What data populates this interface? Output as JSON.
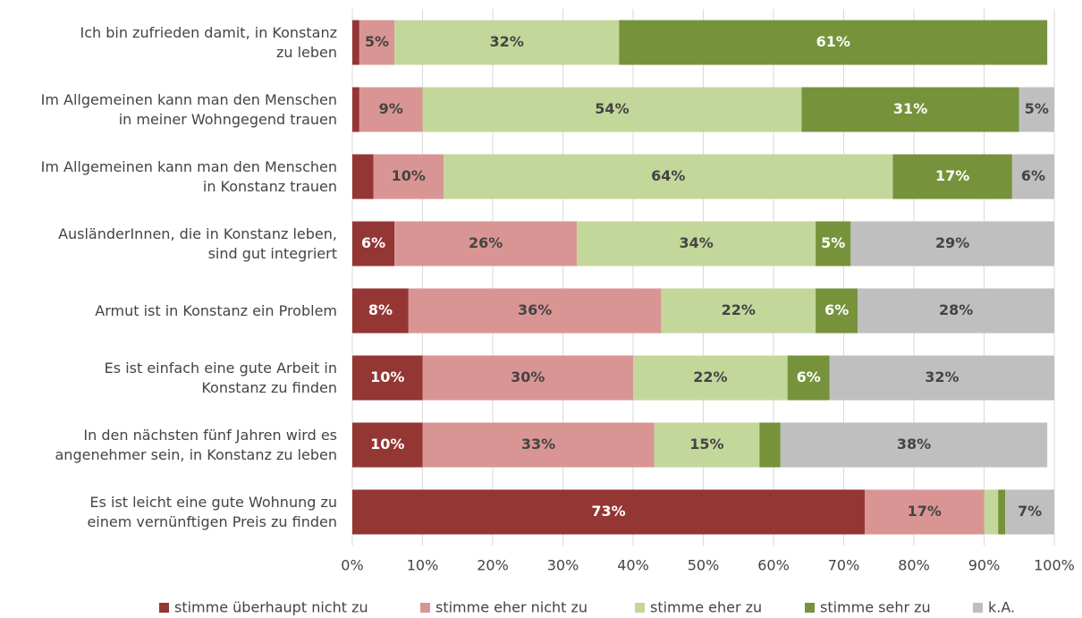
{
  "chart_data": {
    "type": "stacked-barh",
    "categories": [
      "Ich bin zufrieden damit, in Konstanz\nzu leben",
      "Im Allgemeinen kann man den Menschen\nin meiner Wohngegend trauen",
      "Im Allgemeinen kann man den Menschen\nin Konstanz trauen",
      "AusländerInnen, die in Konstanz leben,\nsind gut integriert",
      "Armut ist in Konstanz ein Problem",
      "Es ist einfach eine gute Arbeit in\nKonstanz zu finden",
      "In den nächsten fünf Jahren wird es\nangenehmer sein, in Konstanz zu leben",
      "Es ist leicht eine gute Wohnung zu\neinem vernünftigen Preis zu finden"
    ],
    "series": [
      {
        "name": "stimme überhaupt nicht zu",
        "color": "#943634",
        "values": [
          1,
          1,
          3,
          6,
          8,
          10,
          10,
          73
        ],
        "value_labels": [
          null,
          null,
          null,
          "6%",
          "8%",
          "10%",
          "10%",
          "73%"
        ]
      },
      {
        "name": "stimme eher nicht zu",
        "color": "#d99594",
        "values": [
          5,
          9,
          10,
          26,
          36,
          30,
          33,
          17
        ],
        "value_labels": [
          "5%",
          "9%",
          "10%",
          "26%",
          "36%",
          "30%",
          "33%",
          "17%"
        ]
      },
      {
        "name": "stimme eher zu",
        "color": "#c4d79b",
        "values": [
          32,
          54,
          64,
          34,
          22,
          22,
          15,
          2
        ],
        "value_labels": [
          "32%",
          "54%",
          "64%",
          "34%",
          "22%",
          "22%",
          "15%",
          null
        ]
      },
      {
        "name": "stimme sehr zu",
        "color": "#76933c",
        "values": [
          61,
          31,
          17,
          5,
          6,
          6,
          3,
          1
        ],
        "value_labels": [
          "61%",
          "31%",
          "17%",
          "5%",
          "6%",
          "6%",
          null,
          null
        ]
      },
      {
        "name": "k.A.",
        "color": "#bfbfbf",
        "values": [
          0,
          5,
          6,
          29,
          28,
          32,
          38,
          7
        ],
        "value_labels": [
          null,
          "5%",
          "6%",
          "29%",
          "28%",
          "32%",
          "38%",
          "7%"
        ]
      }
    ],
    "xlim": [
      0,
      100
    ],
    "xticks": [
      {
        "value": 0,
        "label": "0%"
      },
      {
        "value": 10,
        "label": "10%"
      },
      {
        "value": 20,
        "label": "20%"
      },
      {
        "value": 30,
        "label": "30%"
      },
      {
        "value": 40,
        "label": "40%"
      },
      {
        "value": 50,
        "label": "50%"
      },
      {
        "value": 60,
        "label": "60%"
      },
      {
        "value": 70,
        "label": "70%"
      },
      {
        "value": 80,
        "label": "80%"
      },
      {
        "value": 90,
        "label": "90%"
      },
      {
        "value": 100,
        "label": "100%"
      }
    ],
    "grid": true,
    "legend": "bottom"
  }
}
